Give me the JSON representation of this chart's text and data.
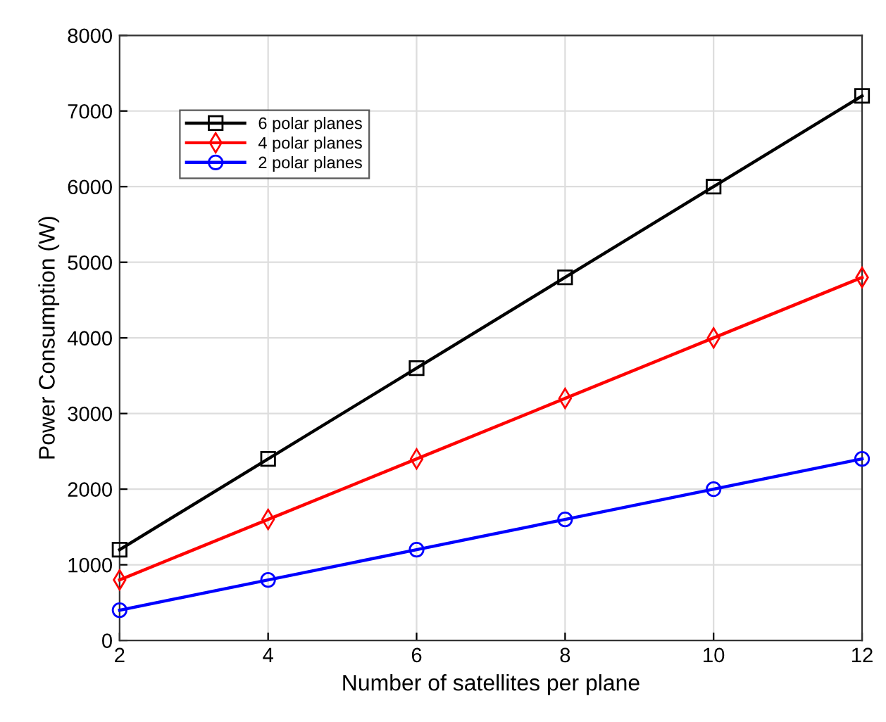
{
  "chart_data": {
    "type": "line",
    "xlabel": "Number of satellites per plane",
    "ylabel": "Power Consumption (W)",
    "x": [
      2,
      4,
      6,
      8,
      10,
      12
    ],
    "series": [
      {
        "name": "6 polar planes",
        "color": "#000000",
        "marker": "square",
        "values": [
          1200,
          2400,
          3600,
          4800,
          6000,
          7200
        ]
      },
      {
        "name": "4 polar planes",
        "color": "#ff0000",
        "marker": "diamond",
        "values": [
          800,
          1600,
          2400,
          3200,
          4000,
          4800
        ]
      },
      {
        "name": "2 polar planes",
        "color": "#0000ff",
        "marker": "circle",
        "values": [
          400,
          800,
          1200,
          1600,
          2000,
          2400
        ]
      }
    ],
    "xlim": [
      2,
      12
    ],
    "xticks": [
      2,
      4,
      6,
      8,
      10,
      12
    ],
    "ylim": [
      0,
      8000
    ],
    "yticks": [
      0,
      1000,
      2000,
      3000,
      4000,
      5000,
      6000,
      7000,
      8000
    ],
    "grid": true,
    "legend": "top left",
    "line_style": "solid"
  }
}
